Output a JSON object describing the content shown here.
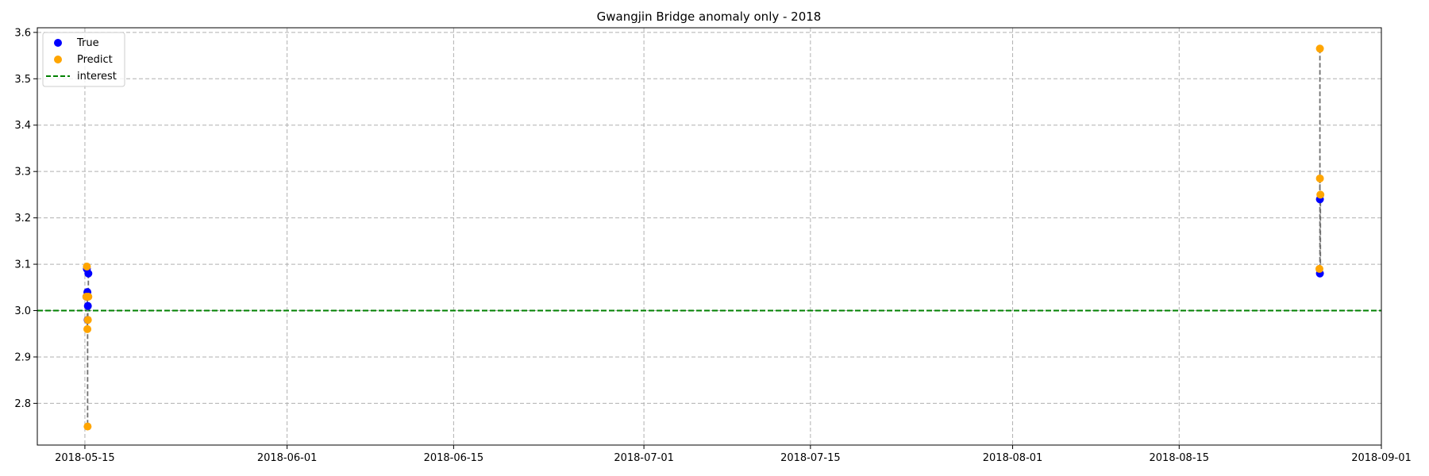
{
  "chart_data": {
    "type": "scatter",
    "title": "Gwangjin Bridge anomaly only - 2018",
    "xlabel": "",
    "ylabel": "",
    "x_axis": {
      "type": "date",
      "range": [
        "2018-05-11",
        "2018-09-01"
      ],
      "ticks": [
        "2018-05-15",
        "2018-06-01",
        "2018-06-15",
        "2018-07-01",
        "2018-07-15",
        "2018-08-01",
        "2018-08-15",
        "2018-09-01"
      ]
    },
    "y_axis": {
      "range": [
        2.71,
        3.61
      ],
      "ticks": [
        2.8,
        2.9,
        3.0,
        3.1,
        3.2,
        3.3,
        3.4,
        3.5,
        3.6
      ],
      "tick_labels": [
        "2.8",
        "2.9",
        "3.0",
        "3.1",
        "3.2",
        "3.3",
        "3.4",
        "3.5",
        "3.6"
      ]
    },
    "grid": true,
    "legend_position": "top-left",
    "legend": [
      {
        "label": "True",
        "marker": "dot",
        "color": "#0000ff"
      },
      {
        "label": "Predict",
        "marker": "dot",
        "color": "#ffa500"
      },
      {
        "label": "interest",
        "marker": "dashed-line",
        "color": "#008000"
      }
    ],
    "interest_line": {
      "y": 3.0,
      "color": "#008000"
    },
    "connector_color": "#707070",
    "series": [
      {
        "name": "True",
        "color": "#0000ff",
        "points": [
          {
            "x": "2018-05-15T04:00",
            "y": 3.09
          },
          {
            "x": "2018-05-15T07:00",
            "y": 3.08
          },
          {
            "x": "2018-05-15T05:00",
            "y": 3.04
          },
          {
            "x": "2018-05-15T03:00",
            "y": 3.03
          },
          {
            "x": "2018-05-15T06:00",
            "y": 3.01
          },
          {
            "x": "2018-05-15T05:30",
            "y": 2.98
          },
          {
            "x": "2018-08-26T20:00",
            "y": 3.24
          },
          {
            "x": "2018-08-26T20:00",
            "y": 3.08
          }
        ]
      },
      {
        "name": "Predict",
        "color": "#ffa500",
        "points": [
          {
            "x": "2018-05-15T04:00",
            "y": 3.095
          },
          {
            "x": "2018-05-15T07:00",
            "y": 3.03
          },
          {
            "x": "2018-05-15T05:00",
            "y": 2.96
          },
          {
            "x": "2018-05-15T03:00",
            "y": 3.03
          },
          {
            "x": "2018-05-15T06:00",
            "y": 2.98
          },
          {
            "x": "2018-05-15T05:30",
            "y": 2.75
          },
          {
            "x": "2018-08-26T20:00",
            "y": 3.565
          },
          {
            "x": "2018-08-26T20:00",
            "y": 3.285
          },
          {
            "x": "2018-08-26T21:00",
            "y": 3.25
          },
          {
            "x": "2018-08-26T19:00",
            "y": 3.09
          }
        ]
      }
    ],
    "connectors": [
      {
        "x": "2018-05-15T04:00",
        "y1": 3.095,
        "y2": 3.09
      },
      {
        "x": "2018-05-15T07:00",
        "y1": 3.08,
        "y2": 3.03
      },
      {
        "x": "2018-05-15T05:00",
        "y1": 3.04,
        "y2": 2.96
      },
      {
        "x": "2018-05-15T06:00",
        "y1": 3.01,
        "y2": 2.98
      },
      {
        "x": "2018-05-15T05:30",
        "y1": 2.98,
        "y2": 2.75
      },
      {
        "x": "2018-08-26T20:00",
        "y1": 3.565,
        "y2": 3.24
      },
      {
        "x": "2018-08-26T20:00",
        "y1": 3.285,
        "y2": 3.08
      },
      {
        "x": "2018-08-26T21:00",
        "y1": 3.25,
        "y2": 3.08
      },
      {
        "x": "2018-08-26T19:00",
        "y1": 3.09,
        "y2": 3.08
      }
    ]
  }
}
